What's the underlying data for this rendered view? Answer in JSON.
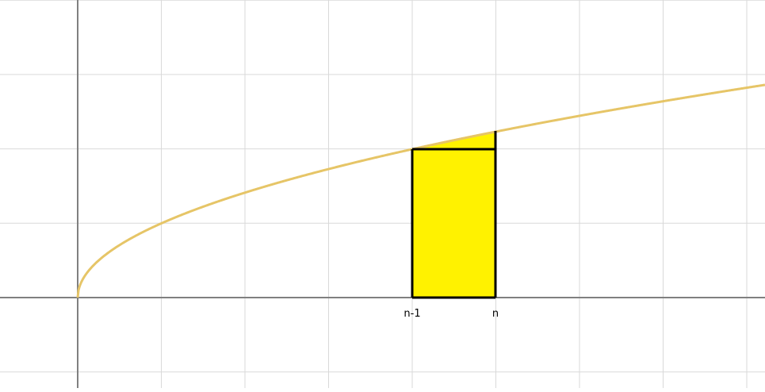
{
  "diagram": {
    "labels": {
      "left_tick": "n-1",
      "right_tick": "n"
    },
    "colors": {
      "grid": "#d9d9d9",
      "axis": "#808080",
      "curve": "#e6c567",
      "fill": "#fff200",
      "outline": "#000000",
      "background": "#ffffff"
    }
  }
}
